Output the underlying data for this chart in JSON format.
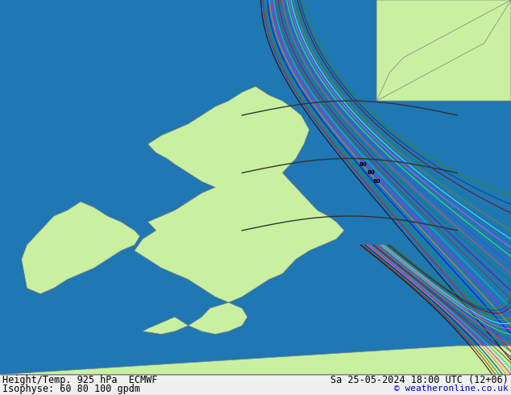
{
  "title_left_line1": "Height/Temp. 925 hPa  ECMWF",
  "title_left_line2": "Isophyse: 60 80 100 gpdm",
  "title_right_line1": "Sa 25-05-2024 18:00 UTC (12+06)",
  "title_right_line2": "© weatheronline.co.uk",
  "background_color": "#e8e8e8",
  "land_color": "#c8f0a0",
  "border_color": "#808080",
  "text_color": "#000000",
  "copyright_color": "#0000cc",
  "fig_width": 6.34,
  "fig_height": 4.9,
  "dpi": 100,
  "bottom_bar_height": 0.048,
  "bottom_bar_color": "#d0d0d0",
  "map_bg_color": "#e0e0e0",
  "sea_color": "#e0e0e0",
  "contour_colors": [
    "#000000",
    "#ff0000",
    "#00aa00",
    "#0000ff",
    "#ff8800",
    "#ff00ff",
    "#00cccc",
    "#884400",
    "#880088",
    "#008800"
  ],
  "label_fontsize": 7.5,
  "title_fontsize": 8.5,
  "copyright_fontsize": 8.0
}
